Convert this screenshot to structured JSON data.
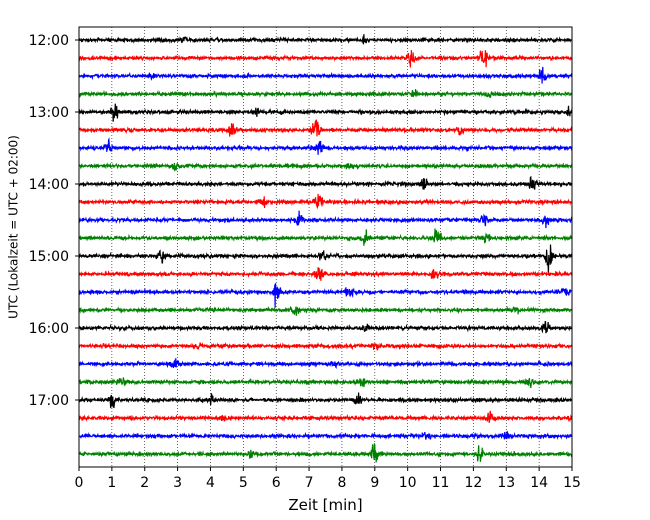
{
  "chart_data": {
    "type": "line",
    "title": "",
    "xlabel": "Zeit  [min]",
    "ylabel": "UTC (Lokalzeit = UTC + 02:00)",
    "xlim": [
      0,
      15
    ],
    "x_ticks": [
      "0",
      "1",
      "2",
      "3",
      "4",
      "5",
      "6",
      "7",
      "8",
      "9",
      "10",
      "11",
      "12",
      "13",
      "14",
      "15"
    ],
    "y_ticks": [
      "12:00",
      "13:00",
      "14:00",
      "15:00",
      "16:00",
      "17:00"
    ],
    "grid": "vertical dotted lines at each minute",
    "trace_colors": [
      "#000000",
      "#ff0000",
      "#0000ff",
      "#008000"
    ],
    "traces": [
      {
        "start": "12:00",
        "events": [
          [
            3.2,
            0.5
          ],
          [
            8.7,
            0.4
          ]
        ]
      },
      {
        "start": "12:15",
        "events": [
          [
            10.1,
            0.9
          ],
          [
            12.3,
            1.6
          ]
        ]
      },
      {
        "start": "12:30",
        "events": [
          [
            2.2,
            0.6
          ],
          [
            14.1,
            1.0
          ]
        ]
      },
      {
        "start": "12:45",
        "events": [
          [
            10.2,
            0.3
          ],
          [
            12.5,
            0.3
          ]
        ]
      },
      {
        "start": "13:00",
        "events": [
          [
            1.1,
            1.0
          ],
          [
            5.4,
            0.8
          ],
          [
            14.9,
            0.8
          ]
        ]
      },
      {
        "start": "13:15",
        "events": [
          [
            4.7,
            1.2
          ],
          [
            7.2,
            1.3
          ],
          [
            11.6,
            0.5
          ]
        ]
      },
      {
        "start": "13:30",
        "events": [
          [
            0.9,
            1.0
          ],
          [
            7.3,
            1.2
          ],
          [
            11.8,
            0.4
          ]
        ]
      },
      {
        "start": "13:45",
        "events": [
          [
            2.9,
            0.4
          ],
          [
            8.2,
            0.4
          ]
        ]
      },
      {
        "start": "14:00",
        "events": [
          [
            10.5,
            0.8
          ],
          [
            13.8,
            0.9
          ]
        ]
      },
      {
        "start": "14:15",
        "events": [
          [
            5.6,
            0.8
          ],
          [
            7.3,
            1.0
          ]
        ]
      },
      {
        "start": "14:30",
        "events": [
          [
            6.7,
            1.1
          ],
          [
            12.3,
            1.0
          ],
          [
            14.2,
            0.7
          ]
        ]
      },
      {
        "start": "14:45",
        "events": [
          [
            8.7,
            1.2
          ],
          [
            10.9,
            1.4
          ],
          [
            12.4,
            0.6
          ]
        ]
      },
      {
        "start": "15:00",
        "events": [
          [
            2.5,
            0.9
          ],
          [
            7.4,
            0.7
          ],
          [
            14.3,
            1.6
          ]
        ]
      },
      {
        "start": "15:15",
        "events": [
          [
            7.3,
            1.4
          ],
          [
            10.8,
            1.0
          ]
        ]
      },
      {
        "start": "15:30",
        "events": [
          [
            6.0,
            1.3
          ],
          [
            8.2,
            0.9
          ],
          [
            14.8,
            0.8
          ]
        ]
      },
      {
        "start": "15:45",
        "events": [
          [
            6.6,
            0.6
          ],
          [
            13.3,
            0.5
          ]
        ]
      },
      {
        "start": "16:00",
        "events": [
          [
            8.7,
            0.5
          ],
          [
            14.2,
            0.9
          ]
        ]
      },
      {
        "start": "16:15",
        "events": [
          [
            3.6,
            0.3
          ],
          [
            9.0,
            0.3
          ]
        ]
      },
      {
        "start": "16:30",
        "events": [
          [
            2.9,
            0.6
          ],
          [
            7.8,
            0.4
          ]
        ]
      },
      {
        "start": "16:45",
        "events": [
          [
            1.3,
            0.6
          ],
          [
            8.6,
            0.6
          ],
          [
            13.7,
            0.5
          ]
        ]
      },
      {
        "start": "17:00",
        "events": [
          [
            1.0,
            1.0
          ],
          [
            4.0,
            0.6
          ],
          [
            8.5,
            0.9
          ]
        ]
      },
      {
        "start": "17:15",
        "events": [
          [
            4.4,
            0.4
          ],
          [
            12.5,
            0.7
          ]
        ]
      },
      {
        "start": "17:30",
        "events": [
          [
            10.6,
            0.6
          ],
          [
            13.0,
            0.8
          ]
        ]
      },
      {
        "start": "17:45",
        "events": [
          [
            5.2,
            0.7
          ],
          [
            9.0,
            1.3
          ],
          [
            12.2,
            1.1
          ]
        ]
      }
    ]
  }
}
